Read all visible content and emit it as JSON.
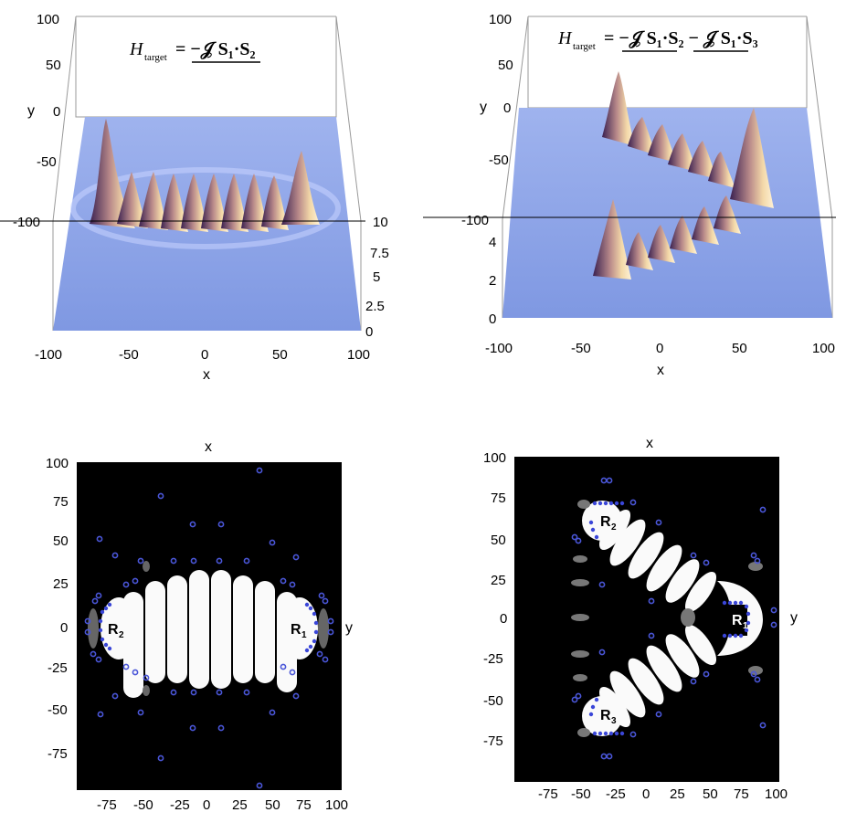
{
  "figure": {
    "panels": [
      {
        "id": "top-left",
        "equation": {
          "H": "H",
          "sub": "target",
          "rhs": "= −𝒥 S₁·S₂"
        },
        "axes": {
          "xlabel": "x",
          "ylabel": "y",
          "x_ticks": [
            "-100",
            "-50",
            "0",
            "50",
            "100"
          ],
          "y_ticks": [
            "100",
            "50",
            "0",
            "-50",
            "-100"
          ],
          "z_ticks": [
            "10",
            "7.5",
            "5",
            "2.5",
            "0"
          ]
        }
      },
      {
        "id": "top-right",
        "equation": {
          "H": "H",
          "sub": "target",
          "rhs": "= −𝒥 S₁·S₂ − 𝒥 S₁·S₃"
        },
        "axes": {
          "xlabel": "x",
          "ylabel": "y",
          "x_ticks": [
            "-100",
            "-50",
            "0",
            "50",
            "100"
          ],
          "y_ticks": [
            "100",
            "50",
            "0",
            "-50",
            "-100"
          ],
          "z_ticks": [
            "4",
            "2",
            "0"
          ]
        }
      },
      {
        "id": "bottom-left",
        "axes": {
          "xlabel": "x",
          "ylabel": "y",
          "x_ticks": [
            "-75",
            "-50",
            "-25",
            "0",
            "25",
            "50",
            "75",
            "100"
          ],
          "y_ticks": [
            "100",
            "75",
            "50",
            "25",
            "0",
            "-25",
            "-50",
            "-75"
          ]
        },
        "regions": [
          "R",
          "R"
        ],
        "region_subs": [
          "2",
          "1"
        ]
      },
      {
        "id": "bottom-right",
        "axes": {
          "xlabel": "x",
          "ylabel": "y",
          "x_ticks": [
            "-75",
            "-50",
            "-25",
            "0",
            "25",
            "50",
            "75",
            "100"
          ],
          "y_ticks": [
            "100",
            "75",
            "50",
            "25",
            "0",
            "-25",
            "-50",
            "-75"
          ]
        },
        "regions": [
          "R",
          "R",
          "R"
        ],
        "region_subs": [
          "2",
          "1",
          "3"
        ]
      }
    ],
    "colors": {
      "surface_base": "#8fa6e8",
      "peak_light": "#f3d6a8",
      "peak_dark": "#4a2a52",
      "map_background": "#000000",
      "marker": "#4a56d8"
    }
  }
}
